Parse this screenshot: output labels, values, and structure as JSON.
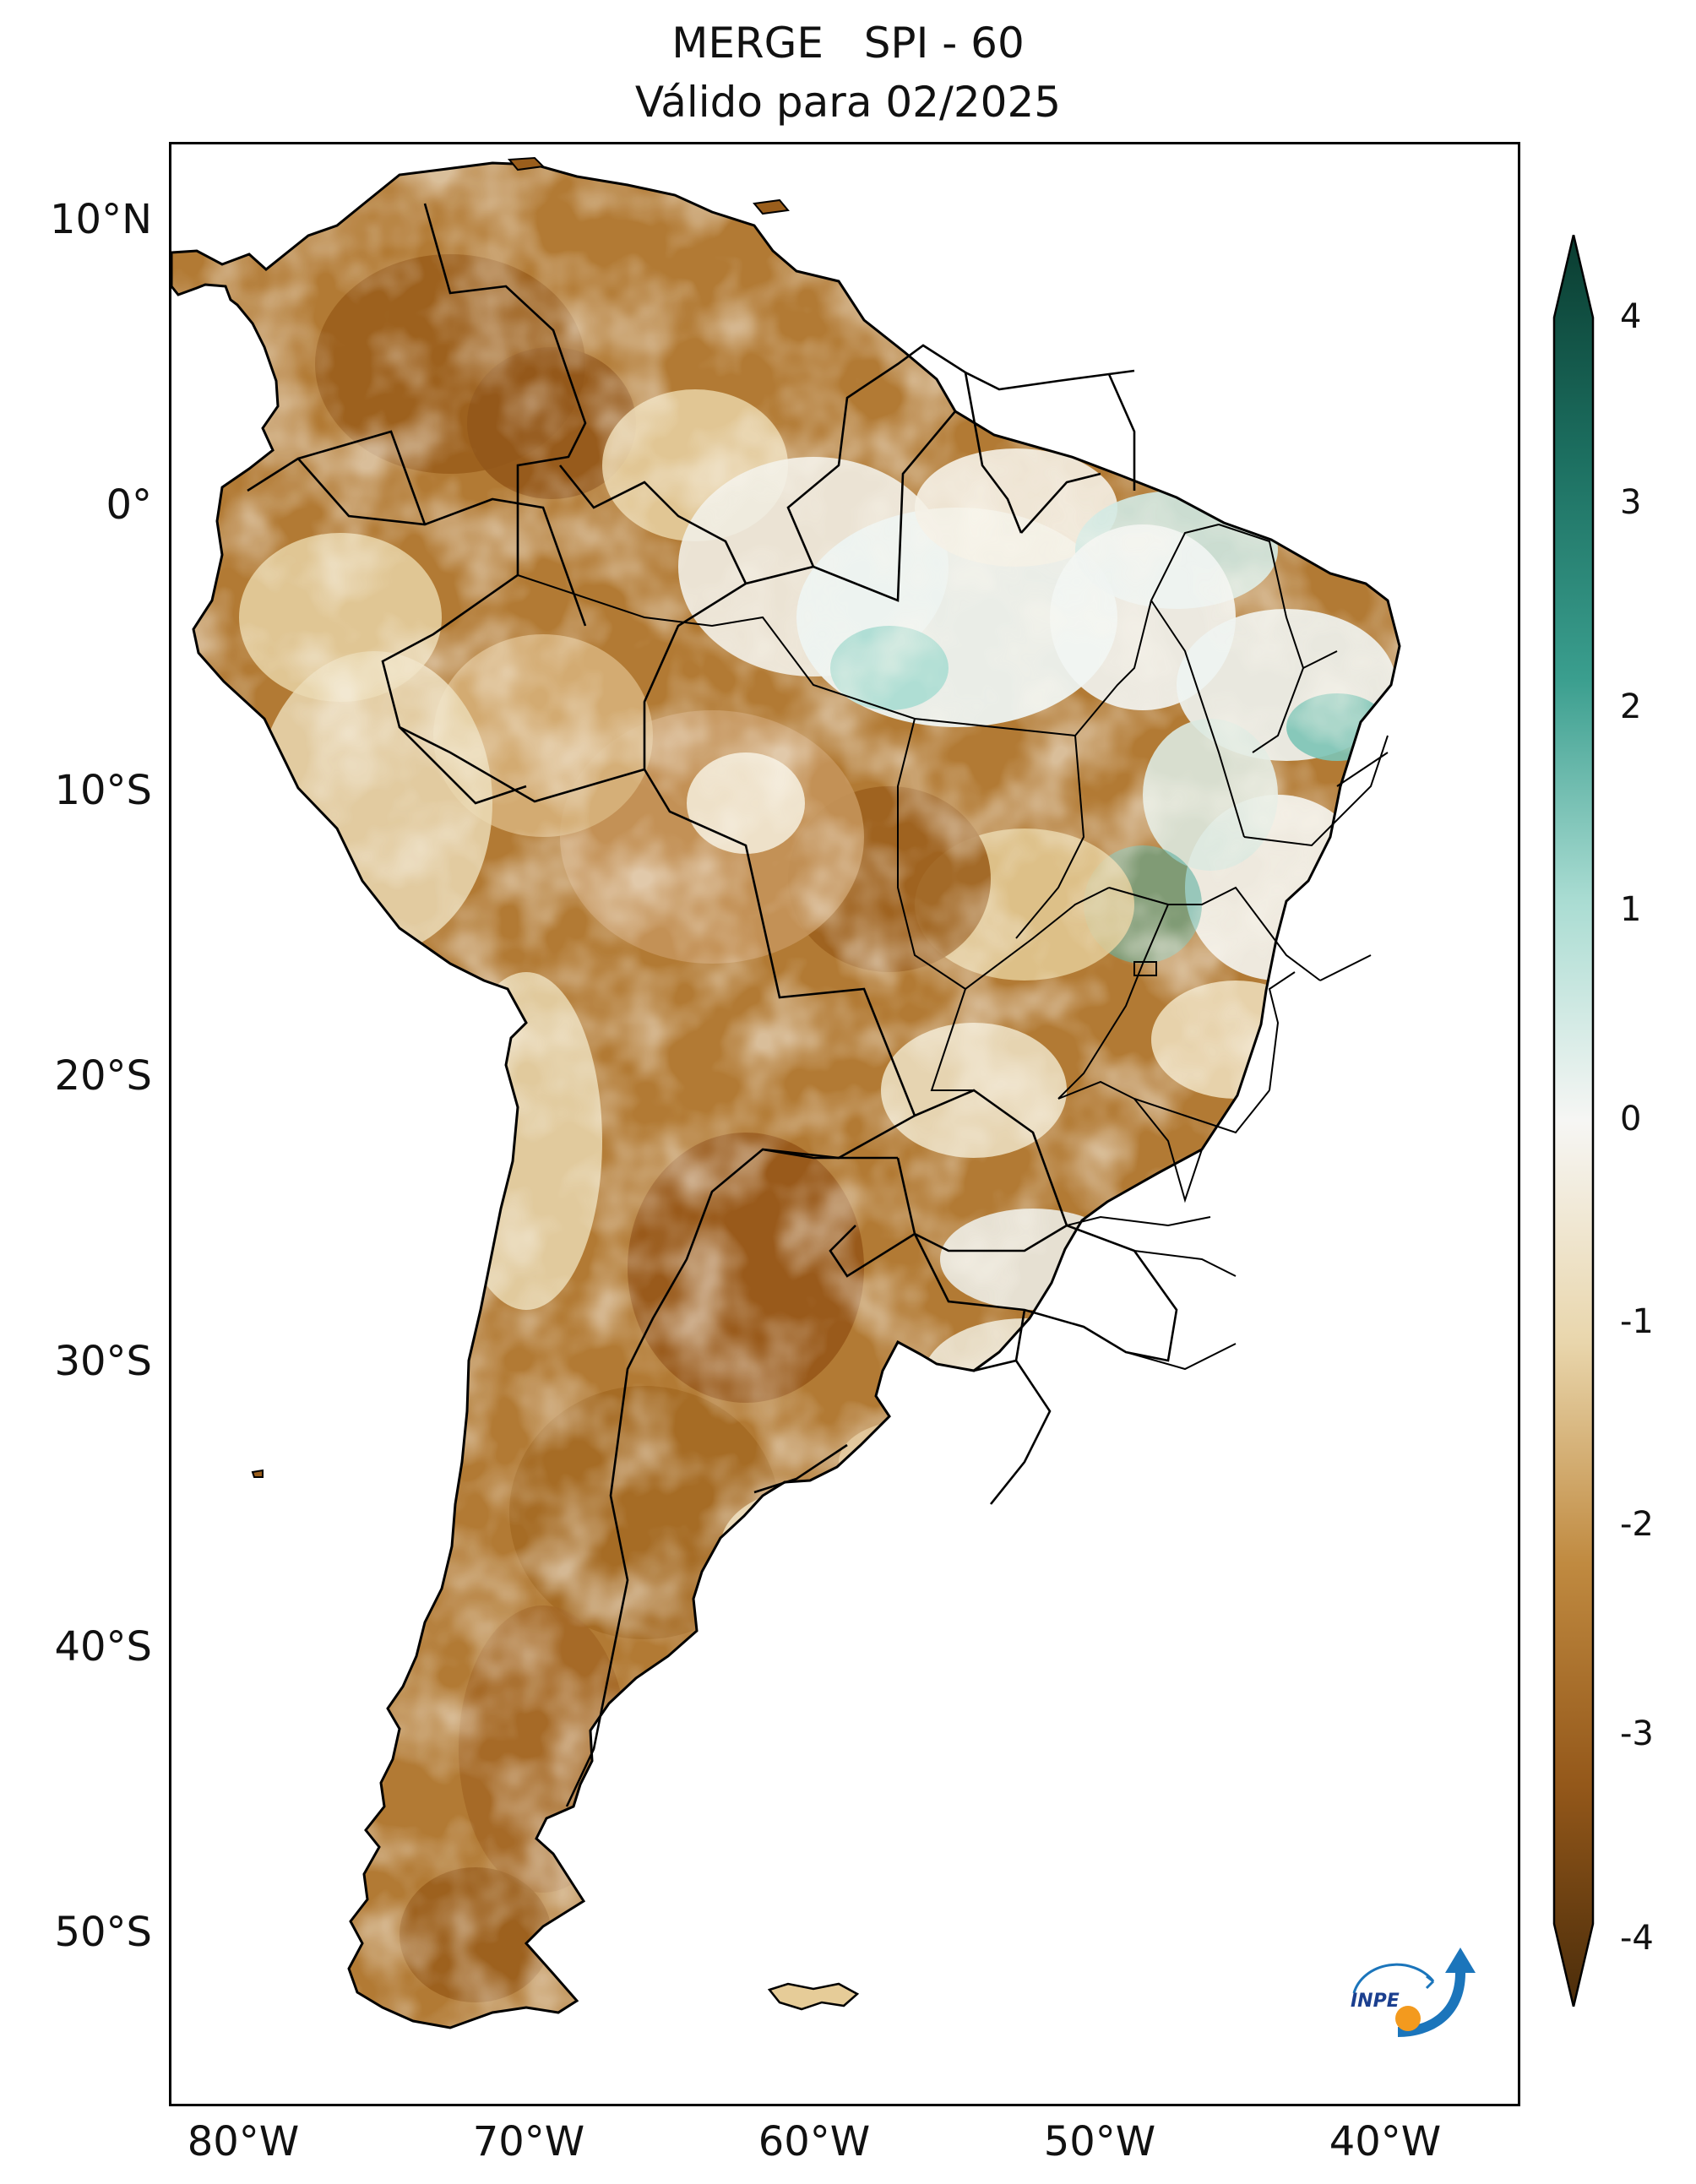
{
  "title": {
    "line1": "MERGE   SPI - 60",
    "line2": "Válido para 02/2025"
  },
  "axes": {
    "lat_ticks": [
      "10°N",
      "0°",
      "10°S",
      "20°S",
      "30°S",
      "40°S",
      "50°S"
    ],
    "lon_ticks": [
      "80°W",
      "70°W",
      "60°W",
      "50°W",
      "40°W"
    ]
  },
  "colorbar": {
    "ticks": [
      "4",
      "3",
      "2",
      "1",
      "0",
      "-1",
      "-2",
      "-3",
      "-4"
    ],
    "min": -4,
    "max": 4,
    "extend": "both",
    "colormap": "BrBG",
    "colors": {
      "dry_extreme": "#4a2c0a",
      "dry": "#94581a",
      "dry_mild": "#d4a85a",
      "neutral": "#f6f6f4",
      "wet_mild": "#a9dcd2",
      "wet": "#3a9e8e",
      "wet_extreme": "#0a3c30"
    }
  },
  "logo": {
    "text": "INPE"
  }
}
